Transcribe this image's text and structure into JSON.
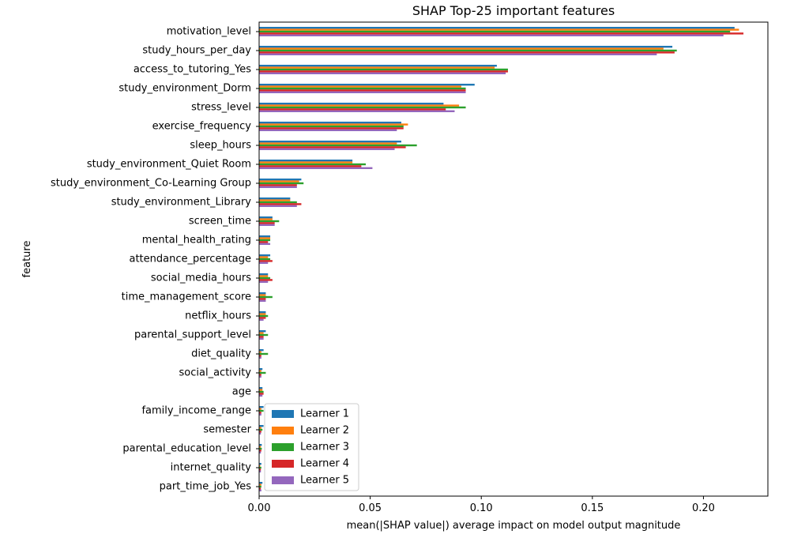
{
  "chart_data": {
    "type": "bar",
    "orientation": "horizontal",
    "title": "SHAP Top-25 important features",
    "xlabel": "mean(|SHAP value|) average impact on model output magnitude",
    "ylabel": "feature",
    "xlim": [
      0,
      0.229
    ],
    "xticks": [
      0.0,
      0.05,
      0.1,
      0.15,
      0.2
    ],
    "xtick_labels": [
      "0.00",
      "0.05",
      "0.10",
      "0.15",
      "0.20"
    ],
    "grid": false,
    "legend_position": "lower-left",
    "categories": [
      "motivation_level",
      "study_hours_per_day",
      "access_to_tutoring_Yes",
      "study_environment_Dorm",
      "stress_level",
      "exercise_frequency",
      "sleep_hours",
      "study_environment_Quiet Room",
      "study_environment_Co-Learning Group",
      "study_environment_Library",
      "screen_time",
      "mental_health_rating",
      "attendance_percentage",
      "social_media_hours",
      "time_management_score",
      "netflix_hours",
      "parental_support_level",
      "diet_quality",
      "social_activity",
      "age",
      "family_income_range",
      "semester",
      "parental_education_level",
      "internet_quality",
      "part_time_job_Yes"
    ],
    "series": [
      {
        "name": "Learner 1",
        "color": "#1f77b4",
        "values": [
          0.214,
          0.186,
          0.107,
          0.097,
          0.083,
          0.064,
          0.064,
          0.042,
          0.019,
          0.014,
          0.006,
          0.005,
          0.005,
          0.004,
          0.003,
          0.003,
          0.003,
          0.002,
          0.0015,
          0.0015,
          0.002,
          0.002,
          0.0012,
          0.001,
          0.0015
        ]
      },
      {
        "name": "Learner 2",
        "color": "#ff7f0e",
        "values": [
          0.216,
          0.182,
          0.106,
          0.091,
          0.09,
          0.067,
          0.062,
          0.042,
          0.018,
          0.014,
          0.006,
          0.005,
          0.004,
          0.004,
          0.003,
          0.003,
          0.002,
          0.001,
          0.001,
          0.0015,
          0.001,
          0.001,
          0.0008,
          0.0005,
          0.001
        ]
      },
      {
        "name": "Learner 3",
        "color": "#2ca02c",
        "values": [
          0.212,
          0.188,
          0.112,
          0.093,
          0.093,
          0.065,
          0.071,
          0.048,
          0.02,
          0.017,
          0.009,
          0.005,
          0.005,
          0.005,
          0.006,
          0.004,
          0.004,
          0.004,
          0.003,
          0.002,
          0.002,
          0.0015,
          0.0012,
          0.001,
          0.001
        ]
      },
      {
        "name": "Learner 4",
        "color": "#d62728",
        "values": [
          0.218,
          0.187,
          0.112,
          0.093,
          0.084,
          0.065,
          0.066,
          0.046,
          0.017,
          0.019,
          0.007,
          0.004,
          0.006,
          0.006,
          0.003,
          0.003,
          0.002,
          0.001,
          0.001,
          0.002,
          0.001,
          0.001,
          0.001,
          0.0008,
          0.0008
        ]
      },
      {
        "name": "Learner 5",
        "color": "#9467bd",
        "values": [
          0.209,
          0.179,
          0.111,
          0.093,
          0.088,
          0.062,
          0.061,
          0.051,
          0.017,
          0.017,
          0.007,
          0.005,
          0.004,
          0.004,
          0.003,
          0.002,
          0.002,
          0.001,
          0.001,
          0.0015,
          0.001,
          0.0008,
          0.0008,
          0.0008,
          0.001
        ]
      }
    ]
  }
}
